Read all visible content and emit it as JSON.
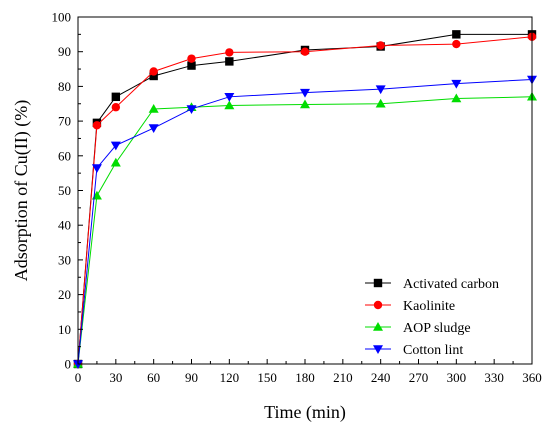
{
  "chart_data": {
    "type": "line",
    "title": "",
    "xlabel": "Time (min)",
    "ylabel": "Adsorption of Cu(II) (%)",
    "xlim": [
      0,
      360
    ],
    "ylim": [
      0,
      100
    ],
    "xticks": [
      0,
      30,
      60,
      90,
      120,
      150,
      180,
      210,
      240,
      270,
      300,
      330,
      360
    ],
    "yticks": [
      0,
      10,
      20,
      30,
      40,
      50,
      60,
      70,
      80,
      90,
      100
    ],
    "grid": false,
    "legend_position": "lower-right",
    "series": [
      {
        "name": "Activated carbon",
        "color": "#000000",
        "marker": "square",
        "x": [
          0,
          15,
          30,
          60,
          90,
          120,
          180,
          240,
          300,
          360
        ],
        "y": [
          0,
          69.5,
          77,
          83,
          86,
          87.2,
          90.5,
          91.5,
          95,
          95
        ]
      },
      {
        "name": "Kaolinite",
        "color": "#ff0000",
        "marker": "circle",
        "x": [
          0,
          15,
          30,
          60,
          90,
          120,
          180,
          240,
          300,
          360
        ],
        "y": [
          0,
          68.8,
          74,
          84.3,
          88,
          89.8,
          90,
          91.8,
          92.2,
          94.3
        ]
      },
      {
        "name": "AOP sludge",
        "color": "#00dd00",
        "marker": "triangle-up",
        "x": [
          0,
          15,
          30,
          60,
          90,
          120,
          180,
          240,
          300,
          360
        ],
        "y": [
          0,
          48.5,
          58,
          73.5,
          74,
          74.5,
          74.8,
          75,
          76.5,
          77
        ]
      },
      {
        "name": "Cotton lint",
        "color": "#0000ff",
        "marker": "triangle-down",
        "x": [
          0,
          15,
          30,
          60,
          90,
          120,
          180,
          240,
          300,
          360
        ],
        "y": [
          0,
          56.5,
          63,
          68,
          73.5,
          77,
          78.2,
          79.2,
          80.8,
          82
        ]
      }
    ]
  }
}
